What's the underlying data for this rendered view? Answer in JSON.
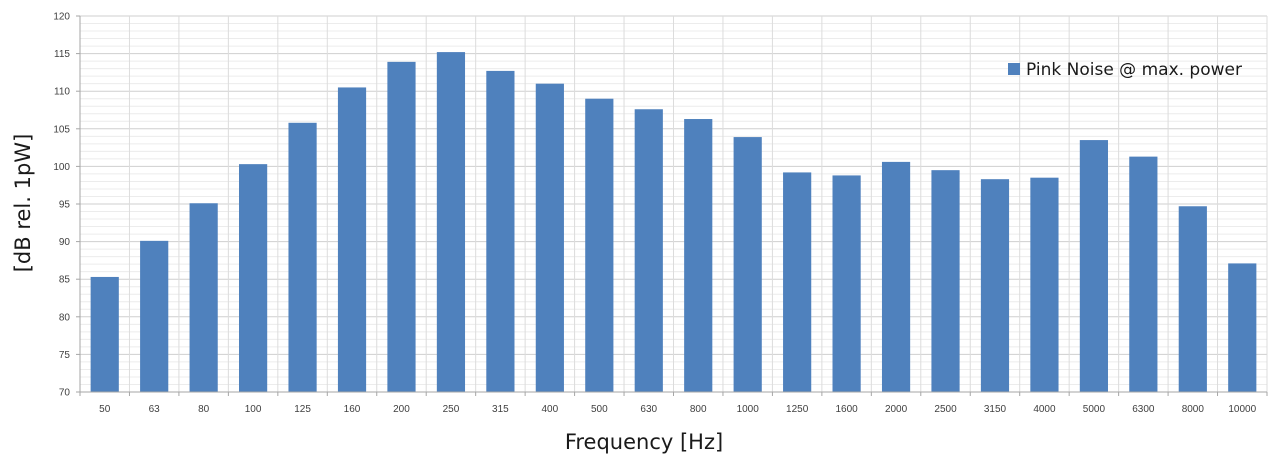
{
  "chart_data": {
    "type": "bar",
    "title": "",
    "xlabel": "Frequency [Hz]",
    "ylabel": "[dB rel. 1pW]",
    "ylim": [
      70,
      120
    ],
    "ytick_step": 5,
    "grid": true,
    "legend_position": "top-right",
    "categories": [
      "50",
      "63",
      "80",
      "100",
      "125",
      "160",
      "200",
      "250",
      "315",
      "400",
      "500",
      "630",
      "800",
      "1000",
      "1250",
      "1600",
      "2000",
      "2500",
      "3150",
      "4000",
      "5000",
      "6300",
      "8000",
      "10000"
    ],
    "series": [
      {
        "name": "Pink Noise @ max. power",
        "color": "#4f81bd",
        "values": [
          85.3,
          90.1,
          95.1,
          100.3,
          105.8,
          110.5,
          113.9,
          115.2,
          112.7,
          111.0,
          109.0,
          107.6,
          106.3,
          103.9,
          99.2,
          98.8,
          100.6,
          99.5,
          98.3,
          98.5,
          103.5,
          101.3,
          94.7,
          87.1
        ]
      }
    ]
  },
  "colors": {
    "grid": "#dcdcdc",
    "axis": "#a6a6a6"
  }
}
